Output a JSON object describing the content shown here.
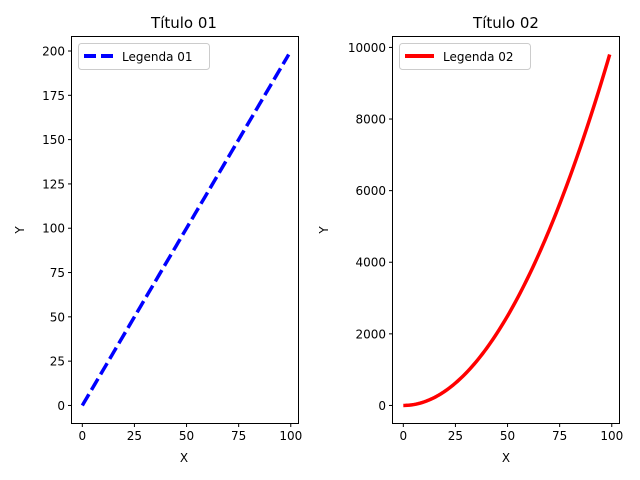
{
  "chart_data": [
    {
      "type": "line",
      "title": "Título 01",
      "xlabel": "X",
      "ylabel": "Y",
      "xlim": [
        -4.95,
        103.95
      ],
      "ylim": [
        -9.9,
        207.9
      ],
      "xticks": [
        0,
        25,
        50,
        75,
        100
      ],
      "yticks": [
        0,
        25,
        50,
        75,
        100,
        125,
        150,
        175,
        200
      ],
      "legend_position": "upper left",
      "series": [
        {
          "name": "Legenda 01",
          "color": "#0000ff",
          "style": "dashed",
          "function": "2*x",
          "x_range": [
            0,
            99
          ],
          "x": [
            0,
            99
          ],
          "y": [
            0,
            198
          ]
        }
      ]
    },
    {
      "type": "line",
      "title": "Título 02",
      "xlabel": "X",
      "ylabel": "Y",
      "xlim": [
        -4.95,
        103.95
      ],
      "ylim": [
        -490.05,
        10291.05
      ],
      "xticks": [
        0,
        25,
        50,
        75,
        100
      ],
      "yticks": [
        0,
        2000,
        4000,
        6000,
        8000,
        10000
      ],
      "legend_position": "upper left",
      "series": [
        {
          "name": "Legenda 02",
          "color": "#ff0000",
          "style": "solid",
          "function": "x^2",
          "x_range": [
            0,
            99
          ],
          "x": [
            0,
            10,
            20,
            30,
            40,
            50,
            60,
            70,
            80,
            90,
            99
          ],
          "y": [
            0,
            100,
            400,
            900,
            1600,
            2500,
            3600,
            4900,
            6400,
            8100,
            9801
          ]
        }
      ]
    }
  ]
}
